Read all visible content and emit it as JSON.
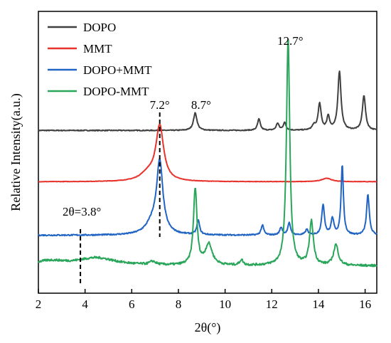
{
  "chart_data": {
    "type": "line",
    "xlabel": "2θ(°)",
    "ylabel": "Relative Intensity(a.u.)",
    "xlim": [
      2,
      16.5
    ],
    "x_ticks": [
      2,
      4,
      6,
      8,
      10,
      12,
      14,
      16
    ],
    "y_ticks_shown": false,
    "grid": false,
    "legend_position": "top-left",
    "series": [
      {
        "name": "DOPO",
        "color": "#404040",
        "baseline": 6.55,
        "noise": 0.02,
        "peaks": [
          {
            "x": 8.72,
            "h": 0.8,
            "w": 0.09
          },
          {
            "x": 11.45,
            "h": 0.52,
            "w": 0.07
          },
          {
            "x": 12.25,
            "h": 0.32,
            "w": 0.07
          },
          {
            "x": 12.55,
            "h": 0.35,
            "w": 0.07
          },
          {
            "x": 13.8,
            "h": 0.2,
            "w": 0.08
          },
          {
            "x": 14.05,
            "h": 1.2,
            "w": 0.08
          },
          {
            "x": 14.42,
            "h": 0.62,
            "w": 0.07
          },
          {
            "x": 14.9,
            "h": 2.7,
            "w": 0.08
          },
          {
            "x": 15.95,
            "h": 1.6,
            "w": 0.08
          }
        ]
      },
      {
        "name": "MMT",
        "color": "#e8322c",
        "baseline": 4.2,
        "noise": 0.01,
        "peaks": [
          {
            "x": 7.2,
            "h": 2.5,
            "w": 0.2
          },
          {
            "x": 6.7,
            "h": 0.35,
            "w": 0.4
          },
          {
            "x": 14.35,
            "h": 0.16,
            "w": 0.25
          }
        ]
      },
      {
        "name": "DOPO+MMT",
        "color": "#2165c4",
        "baseline": 1.75,
        "noise": 0.03,
        "peaks": [
          {
            "x": 7.2,
            "h": 3.2,
            "w": 0.16
          },
          {
            "x": 6.9,
            "h": 0.5,
            "w": 0.35
          },
          {
            "x": 8.85,
            "h": 0.65,
            "w": 0.07
          },
          {
            "x": 11.6,
            "h": 0.45,
            "w": 0.07
          },
          {
            "x": 12.4,
            "h": 0.35,
            "w": 0.07
          },
          {
            "x": 12.75,
            "h": 0.55,
            "w": 0.07
          },
          {
            "x": 13.5,
            "h": 0.25,
            "w": 0.07
          },
          {
            "x": 14.2,
            "h": 1.4,
            "w": 0.07
          },
          {
            "x": 14.6,
            "h": 0.75,
            "w": 0.07
          },
          {
            "x": 15.02,
            "h": 3.2,
            "w": 0.06
          },
          {
            "x": 16.12,
            "h": 1.85,
            "w": 0.07
          }
        ]
      },
      {
        "name": "DOPO-MMT",
        "color": "#2aa65b",
        "baseline": 0.35,
        "noise": 0.05,
        "peaks": [
          {
            "x": 2.5,
            "h": 0.2,
            "w": 0.8
          },
          {
            "x": 4.5,
            "h": 0.35,
            "w": 1.0
          },
          {
            "x": 6.9,
            "h": 0.15,
            "w": 0.15
          },
          {
            "x": 8.72,
            "h": 3.5,
            "w": 0.09
          },
          {
            "x": 9.3,
            "h": 0.95,
            "w": 0.18
          },
          {
            "x": 10.7,
            "h": 0.25,
            "w": 0.08
          },
          {
            "x": 12.7,
            "h": 10.4,
            "w": 0.085
          },
          {
            "x": 13.7,
            "h": 2.0,
            "w": 0.1
          },
          {
            "x": 14.75,
            "h": 0.95,
            "w": 0.12
          }
        ]
      }
    ],
    "annotations": [
      {
        "text": "2θ=3.8°",
        "x": 3.8,
        "dashed_line": true
      },
      {
        "text": "7.2°",
        "x": 7.2,
        "dashed_line": true
      },
      {
        "text": "8.7°",
        "x": 8.7,
        "dashed_line": false
      },
      {
        "text": "12.7°",
        "x": 12.7,
        "dashed_line": false
      }
    ]
  }
}
